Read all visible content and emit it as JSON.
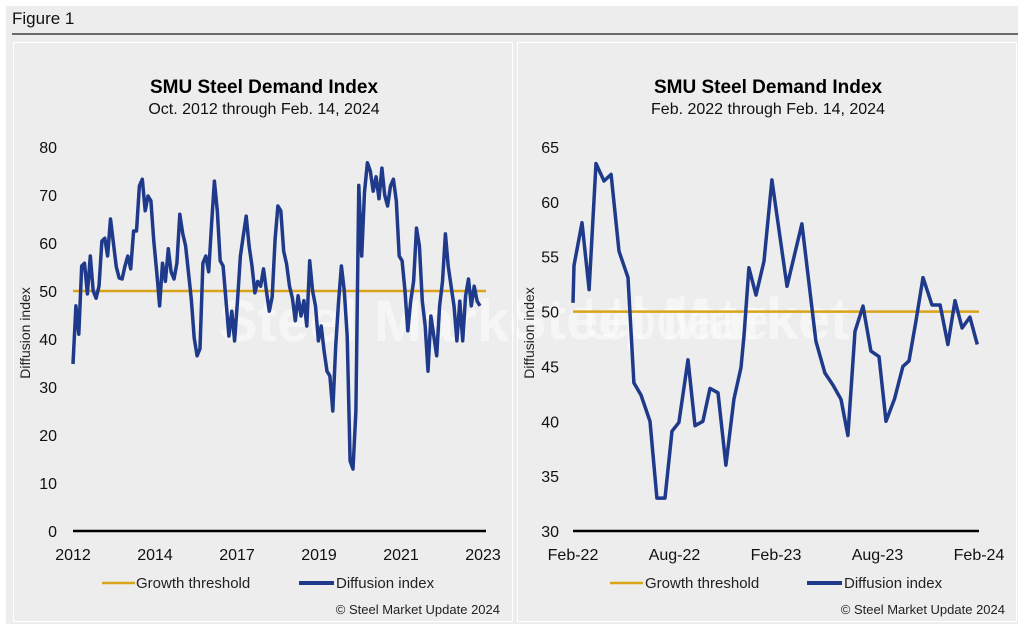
{
  "figure": {
    "title": "Figure 1"
  },
  "watermark": {
    "text_bold": "Steel Market",
    "text_light": "Update"
  },
  "colors": {
    "series": "#1f3a8a",
    "threshold": "#d9a31a",
    "axis": "#000000",
    "background": "#ededed"
  },
  "chart_data": [
    {
      "type": "line",
      "title": "SMU Steel Demand Index",
      "subtitle": "Oct. 2012 through Feb. 14, 2024",
      "xlabel": "",
      "ylabel": "Diffusion index",
      "ylim": [
        0,
        80
      ],
      "yticks": [
        0,
        10,
        20,
        30,
        40,
        50,
        60,
        70,
        80
      ],
      "xtick_labels": [
        "2012",
        "2014",
        "2017",
        "2019",
        "2021",
        "2023"
      ],
      "grid": false,
      "legend": {
        "position": "bottom",
        "entries": [
          "Growth threshold",
          "Diffusion index"
        ]
      },
      "copyright": "© Steel Market Update 2024",
      "series": [
        {
          "name": "Growth threshold",
          "type": "constant",
          "value": 50
        },
        {
          "name": "Diffusion index",
          "values": [
            34.8,
            46.9,
            41.0,
            55.2,
            55.8,
            49.4,
            57.3,
            50.0,
            48.5,
            51.0,
            60.4,
            61.0,
            57.3,
            65.0,
            60.0,
            55.0,
            52.7,
            52.5,
            55.2,
            57.3,
            54.6,
            62.5,
            62.5,
            71.9,
            73.3,
            66.7,
            69.8,
            68.8,
            60.4,
            54.0,
            46.9,
            55.8,
            52.0,
            58.8,
            54.0,
            52.5,
            55.8,
            66.0,
            62.0,
            59.4,
            53.8,
            48.3,
            40.2,
            36.5,
            38.0,
            55.8,
            57.3,
            54.0,
            64.0,
            72.9,
            66.7,
            56.3,
            55.2,
            48.0,
            40.6,
            45.8,
            39.6,
            48.0,
            57.3,
            61.5,
            65.6,
            59.4,
            55.2,
            49.6,
            52.0,
            51.0,
            54.6,
            50.0,
            45.8,
            48.8,
            60.8,
            67.7,
            66.7,
            58.3,
            55.6,
            51.0,
            48.5,
            43.8,
            49.0,
            44.8,
            48.0,
            42.7,
            56.3,
            50.0,
            46.9,
            39.6,
            42.7,
            37.5,
            33.3,
            32.3,
            25.0,
            38.5,
            47.9,
            55.2,
            50.0,
            40.6,
            14.6,
            12.9,
            25.0,
            72.0,
            57.3,
            70.6,
            76.7,
            75.0,
            70.8,
            73.8,
            69.2,
            75.6,
            70.0,
            67.7,
            71.9,
            73.3,
            68.8,
            57.3,
            56.3,
            50.0,
            41.7,
            47.9,
            52.0,
            63.1,
            59.4,
            47.9,
            42.7,
            33.3,
            44.8,
            40.6,
            36.5,
            46.9,
            52.0,
            61.9,
            55.2,
            51.0,
            46.9,
            39.6,
            47.9,
            39.6,
            49.0,
            52.5,
            46.9,
            51.0,
            47.9,
            46.9
          ]
        }
      ]
    },
    {
      "type": "line",
      "title": "SMU Steel Demand Index",
      "subtitle": "Feb. 2022 through Feb. 14, 2024",
      "xlabel": "",
      "ylabel": "Diffusion index",
      "ylim": [
        30,
        65
      ],
      "yticks": [
        30,
        35,
        40,
        45,
        50,
        55,
        60,
        65
      ],
      "xtick_labels": [
        "Feb-22",
        "Aug-22",
        "Feb-23",
        "Aug-23",
        "Feb-24"
      ],
      "x_unit": "months since Feb-22",
      "xlim": [
        0,
        24
      ],
      "grid": false,
      "legend": {
        "position": "bottom",
        "entries": [
          "Growth threshold",
          "Diffusion index"
        ]
      },
      "copyright": "© Steel Market Update 2024",
      "series": [
        {
          "name": "Growth threshold",
          "type": "constant",
          "value": 50
        },
        {
          "name": "Diffusion index",
          "x": [
            0.0,
            0.06,
            0.53,
            0.95,
            1.36,
            1.83,
            2.25,
            2.72,
            3.25,
            3.6,
            4.02,
            4.55,
            4.96,
            5.44,
            5.85,
            6.26,
            6.8,
            7.21,
            7.68,
            8.1,
            8.57,
            9.04,
            9.51,
            9.93,
            10.11,
            10.4,
            10.82,
            11.29,
            11.76,
            12.65,
            13.53,
            14.36,
            14.89,
            15.37,
            15.84,
            16.25,
            16.67,
            17.14,
            17.61,
            18.09,
            18.5,
            19.0,
            19.5,
            19.86,
            20.27,
            20.69,
            21.22,
            21.7,
            22.16,
            22.58,
            23.0,
            23.46,
            23.9
          ],
          "values": [
            50.8,
            54.2,
            58.1,
            52.0,
            63.5,
            61.9,
            62.5,
            55.5,
            53.1,
            43.5,
            42.4,
            40.0,
            33.0,
            33.0,
            39.1,
            39.9,
            45.6,
            39.6,
            40.0,
            43.0,
            42.6,
            36.0,
            42.0,
            44.9,
            47.8,
            54.0,
            51.5,
            54.6,
            62.0,
            52.3,
            58.0,
            47.3,
            44.4,
            43.3,
            42.0,
            38.7,
            48.2,
            50.5,
            46.4,
            45.9,
            40.0,
            42.0,
            45.0,
            45.5,
            49.1,
            53.1,
            50.6,
            50.6,
            47.0,
            51.0,
            48.5,
            49.5,
            47.0
          ]
        }
      ]
    }
  ]
}
